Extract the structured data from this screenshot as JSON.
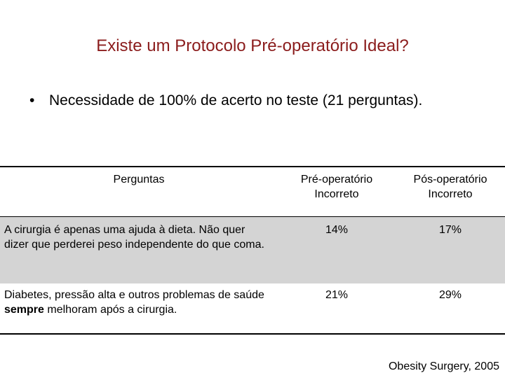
{
  "header": {
    "title": "Existe um Protocolo Pré-operatório Ideal?"
  },
  "bullets": [
    "Necessidade de 100% de acerto no teste (21 perguntas)."
  ],
  "table": {
    "columns": [
      "Perguntas",
      [
        "Pré-operatório",
        "Incorreto"
      ],
      [
        "Pós-operatório",
        "Incorreto"
      ]
    ],
    "rows": [
      [
        "A cirurgia é apenas uma ajuda à dieta. Não quer dizer que perderei peso independente do que coma.",
        "14%",
        "17%"
      ],
      [
        [
          "Diabetes, pressão alta e outros problemas de saúde ",
          "sempre",
          " melhoram após a cirurgia."
        ],
        "21%",
        "29%"
      ]
    ]
  },
  "footer": {
    "citation": "Obesity Surgery, 2005"
  }
}
